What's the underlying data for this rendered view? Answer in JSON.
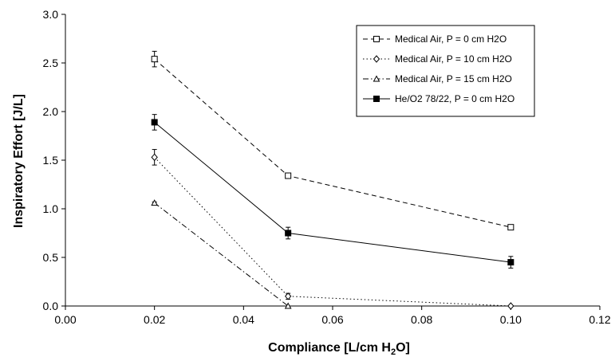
{
  "chart_data": {
    "type": "line",
    "title": "",
    "xlabel_main": "Compliance [L/cm H",
    "xlabel_sub": "2",
    "xlabel_tail": "O]",
    "ylabel": "Inspiratory Effort [J/L]",
    "xlim": [
      0.0,
      0.12
    ],
    "ylim": [
      0.0,
      3.0
    ],
    "x_ticks": [
      "0.00",
      "0.02",
      "0.04",
      "0.06",
      "0.08",
      "0.10",
      "0.12"
    ],
    "y_ticks": [
      "0.0",
      "0.5",
      "1.0",
      "1.5",
      "2.0",
      "2.5",
      "3.0"
    ],
    "x_tick_values": [
      0,
      0.02,
      0.04,
      0.06,
      0.08,
      0.1,
      0.12
    ],
    "y_tick_values": [
      0,
      0.5,
      1.0,
      1.5,
      2.0,
      2.5,
      3.0
    ],
    "grid": false,
    "legend_position": "top-right",
    "x": [
      0.02,
      0.05,
      0.1
    ],
    "series": [
      {
        "name": "Medical Air, P = 0 cm H2O",
        "marker": "square-open",
        "line": "dashed",
        "values": [
          2.54,
          1.34,
          0.81
        ],
        "errors": [
          0.08,
          0.02,
          0.01
        ]
      },
      {
        "name": "Medical Air, P = 10 cm H2O",
        "marker": "diamond-open",
        "line": "dotted",
        "values": [
          1.53,
          0.1,
          0.0
        ],
        "errors": [
          0.08,
          0.03,
          0.0
        ]
      },
      {
        "name": "Medical Air, P = 15 cm H2O",
        "marker": "triangle-open",
        "line": "dashdot",
        "values": [
          1.06,
          0.0,
          null
        ],
        "errors": [
          0.01,
          0.0,
          null
        ]
      },
      {
        "name": "He/O2 78/22, P = 0 cm H2O",
        "marker": "square-filled",
        "line": "solid",
        "values": [
          1.89,
          0.75,
          0.45
        ],
        "errors": [
          0.08,
          0.06,
          0.06
        ]
      }
    ]
  }
}
